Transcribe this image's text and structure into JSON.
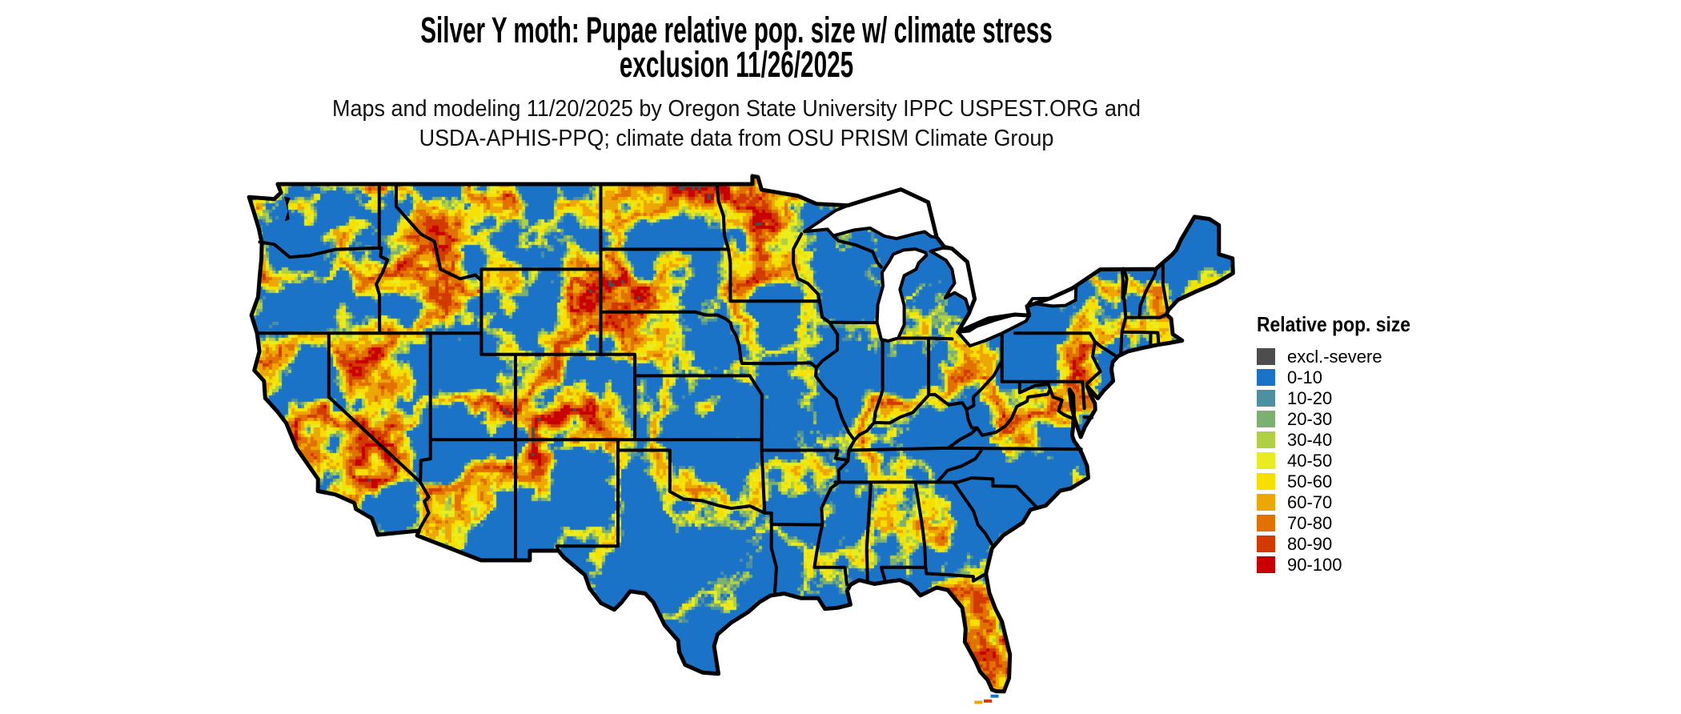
{
  "title": {
    "line1": "Silver Y moth: Pupae relative pop. size w/ climate stress",
    "line2": "exclusion 11/26/2025"
  },
  "subtitle": {
    "line1": "Maps and modeling 11/20/2025 by Oregon State University IPPC USPEST.ORG and",
    "line2": "USDA-APHIS-PPQ; climate data from OSU PRISM Climate Group"
  },
  "map": {
    "region": "Contiguous United States",
    "border_color": "#000000",
    "water_color": "#ffffff"
  },
  "legend": {
    "title": "Relative pop. size",
    "items": [
      {
        "label": "excl.-severe",
        "color": "#4d4d4d"
      },
      {
        "label": "0-10",
        "color": "#1b73c8"
      },
      {
        "label": "10-20",
        "color": "#4b91a2"
      },
      {
        "label": "20-30",
        "color": "#7cb06f"
      },
      {
        "label": "30-40",
        "color": "#b0d044"
      },
      {
        "label": "40-50",
        "color": "#e8ec20"
      },
      {
        "label": "50-60",
        "color": "#f7df00"
      },
      {
        "label": "60-70",
        "color": "#eda704"
      },
      {
        "label": "70-80",
        "color": "#e27200"
      },
      {
        "label": "80-90",
        "color": "#d33a00"
      },
      {
        "label": "90-100",
        "color": "#c80001"
      }
    ]
  }
}
